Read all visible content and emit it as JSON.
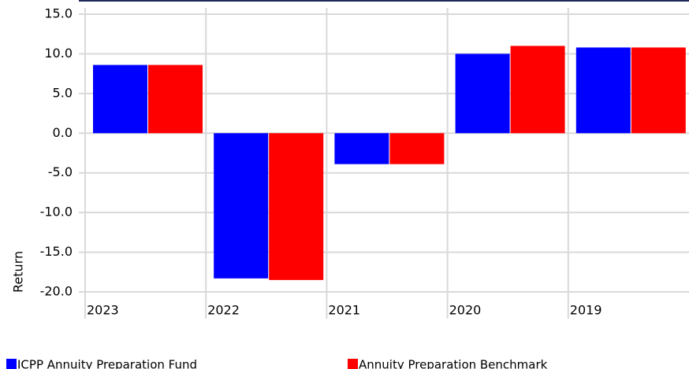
{
  "chart_data": {
    "type": "bar",
    "categories": [
      "2023",
      "2022",
      "2021",
      "2020",
      "2019"
    ],
    "series": [
      {
        "name": "ICPP Annuity Preparation Fund",
        "color": "#0000ff",
        "values": [
          8.6,
          -18.3,
          -3.9,
          10.0,
          10.8
        ]
      },
      {
        "name": "Annuity Preparation Benchmark",
        "color": "#ff0000",
        "values": [
          8.6,
          -18.5,
          -3.9,
          11.0,
          10.8
        ]
      }
    ],
    "y_label": "Return",
    "ylim": [
      -20,
      15
    ],
    "yticks": [
      {
        "value": -20,
        "label": "-20.0"
      },
      {
        "value": -15,
        "label": "-15.0"
      },
      {
        "value": -10,
        "label": "-10.0"
      },
      {
        "value": -5,
        "label": "-5.0"
      },
      {
        "value": 0,
        "label": "0.0"
      },
      {
        "value": 5,
        "label": "5.0"
      },
      {
        "value": 10,
        "label": "10.0"
      },
      {
        "value": 15,
        "label": "15.0"
      }
    ],
    "grid": true
  }
}
